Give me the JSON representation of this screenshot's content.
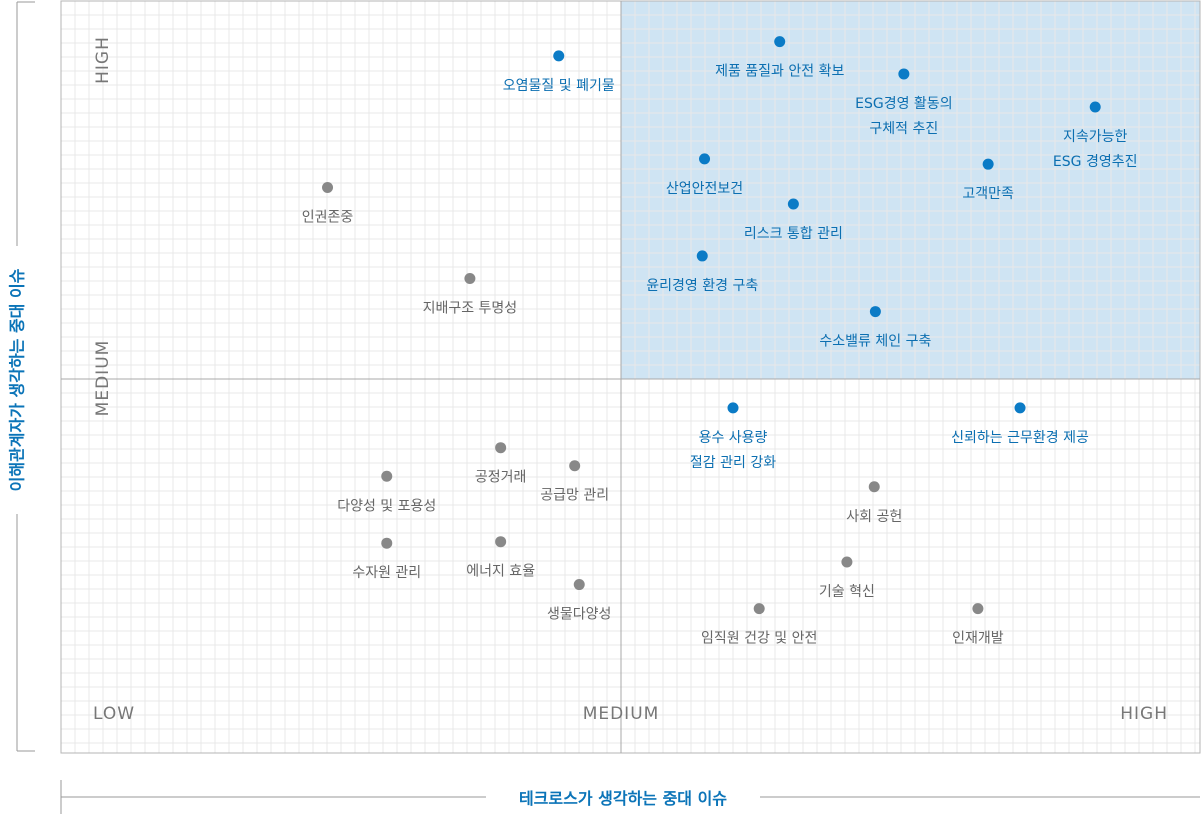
{
  "chart_data": {
    "type": "scatter",
    "xlabel": "테크로스가 생각하는 중대 이슈",
    "ylabel": "이해관계자가 생각하는 중대 이슈",
    "xlim": [
      0,
      100
    ],
    "ylim": [
      0,
      100
    ],
    "x_levels": [
      "LOW",
      "MEDIUM",
      "HIGH"
    ],
    "y_levels": [
      "HIGH",
      "MEDIUM"
    ],
    "grid": true,
    "highlight_quadrant": "top-right",
    "colors": {
      "material": "#0b7bc6",
      "other": "#888888",
      "highlight_fill": "#cfe4f3",
      "material_label": "#0c6fb1",
      "other_label": "#666666"
    },
    "points": [
      {
        "lines": [
          "오염물질 및 폐기물"
        ],
        "x": 43.7,
        "y": 92.7,
        "material": true
      },
      {
        "lines": [
          "제품 품질과 안전 확보"
        ],
        "x": 63.1,
        "y": 94.6,
        "material": true
      },
      {
        "lines": [
          "ESG경영 활동의",
          "구체적 추진"
        ],
        "x": 74.0,
        "y": 90.3,
        "material": true
      },
      {
        "lines": [
          "지속가능한",
          "ESG 경영추진"
        ],
        "x": 90.8,
        "y": 85.9,
        "material": true
      },
      {
        "lines": [
          "산업안전보건"
        ],
        "x": 56.5,
        "y": 79.0,
        "material": true
      },
      {
        "lines": [
          "고객만족"
        ],
        "x": 81.4,
        "y": 78.3,
        "material": true
      },
      {
        "lines": [
          "리스크 통합 관리"
        ],
        "x": 64.3,
        "y": 73.0,
        "material": true
      },
      {
        "lines": [
          "윤리경영 환경 구축"
        ],
        "x": 56.3,
        "y": 66.1,
        "material": true
      },
      {
        "lines": [
          "수소밸류 체인 구축"
        ],
        "x": 71.5,
        "y": 58.7,
        "material": true
      },
      {
        "lines": [
          "용수 사용량",
          "절감 관리 강화"
        ],
        "x": 59.0,
        "y": 45.9,
        "material": true
      },
      {
        "lines": [
          "신뢰하는 근무환경 제공"
        ],
        "x": 84.2,
        "y": 45.9,
        "material": true
      },
      {
        "lines": [
          "인권존중"
        ],
        "x": 23.4,
        "y": 75.2,
        "material": false
      },
      {
        "lines": [
          "지배구조 투명성"
        ],
        "x": 35.9,
        "y": 63.1,
        "material": false
      },
      {
        "lines": [
          "공정거래"
        ],
        "x": 38.6,
        "y": 40.6,
        "material": false
      },
      {
        "lines": [
          "다양성 및 포용성"
        ],
        "x": 28.6,
        "y": 36.8,
        "material": false
      },
      {
        "lines": [
          "공급망 관리"
        ],
        "x": 45.1,
        "y": 38.2,
        "material": false
      },
      {
        "lines": [
          "수자원 관리"
        ],
        "x": 28.6,
        "y": 27.9,
        "material": false
      },
      {
        "lines": [
          "에너지 효율"
        ],
        "x": 38.6,
        "y": 28.1,
        "material": false
      },
      {
        "lines": [
          "생물다양성"
        ],
        "x": 45.5,
        "y": 22.4,
        "material": false
      },
      {
        "lines": [
          "사회 공헌"
        ],
        "x": 71.4,
        "y": 35.4,
        "material": false
      },
      {
        "lines": [
          "기술 혁신"
        ],
        "x": 69.0,
        "y": 25.4,
        "material": false
      },
      {
        "lines": [
          "임직원 건강 및 안전"
        ],
        "x": 61.3,
        "y": 19.2,
        "material": false
      },
      {
        "lines": [
          "인재개발"
        ],
        "x": 80.5,
        "y": 19.2,
        "material": false
      }
    ]
  }
}
